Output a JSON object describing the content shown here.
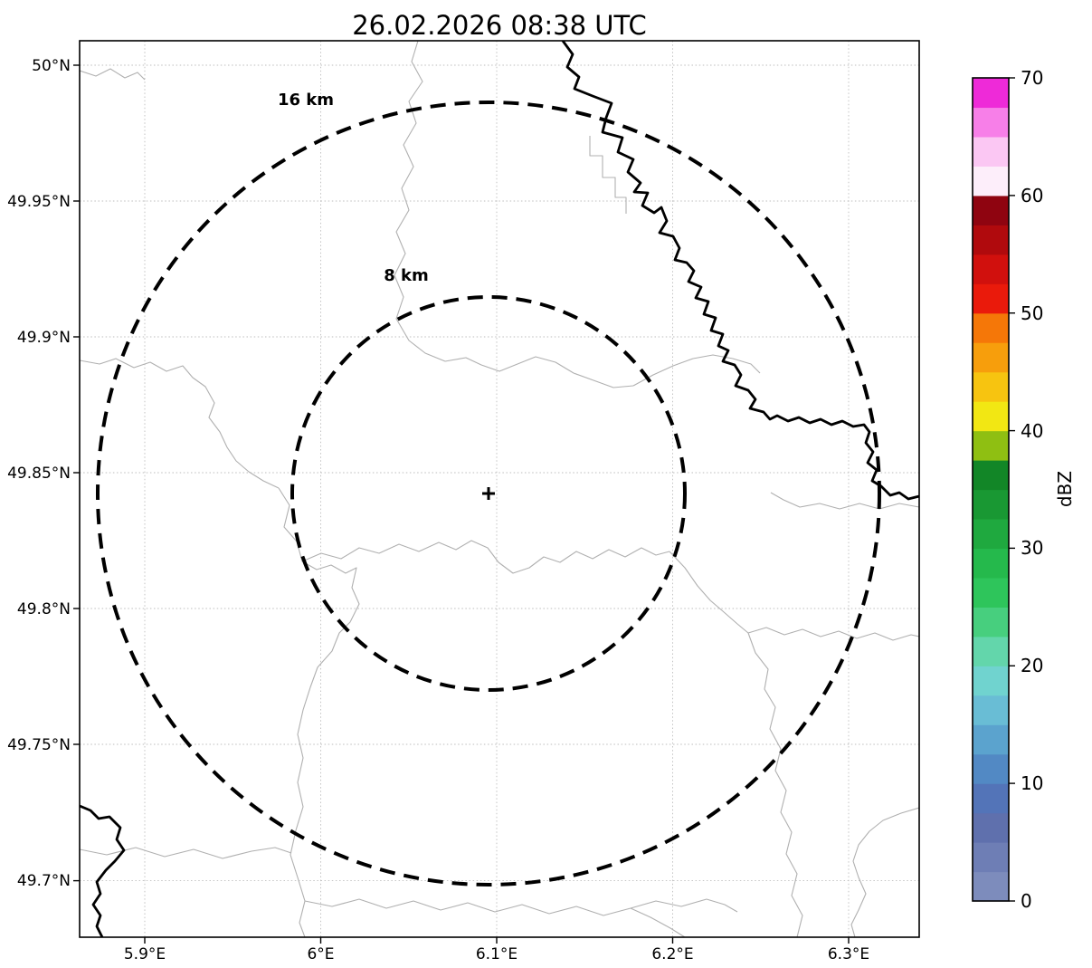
{
  "title": "26.02.2026 08:38 UTC",
  "map": {
    "x_axis": {
      "ticks": [
        "5.9°E",
        "6°E",
        "6.1°E",
        "6.2°E",
        "6.3°E"
      ]
    },
    "y_axis": {
      "ticks": [
        "50°N",
        "49.95°N",
        "49.9°N",
        "49.85°N",
        "49.8°N",
        "49.75°N",
        "49.7°N"
      ]
    },
    "range_rings": [
      {
        "label": "16 km",
        "radius_km": 16
      },
      {
        "label": "8 km",
        "radius_km": 8
      }
    ],
    "center_marker": "+"
  },
  "colorbar": {
    "label": "dBZ",
    "min": 0,
    "max": 70,
    "ticks": [
      "0",
      "10",
      "20",
      "30",
      "40",
      "50",
      "60",
      "70"
    ],
    "colors_bottom_to_top": [
      "#7d8cbc",
      "#6e7eb5",
      "#5f70ad",
      "#5374b8",
      "#5289c4",
      "#5ba3ce",
      "#69bdd5",
      "#70d3cf",
      "#63d6ab",
      "#47cf7e",
      "#2ec55b",
      "#25b94c",
      "#1fa93f",
      "#199833",
      "#128627",
      "#8fbf12",
      "#f2e713",
      "#f7c410",
      "#f79e0c",
      "#f57708",
      "#ea1a0b",
      "#d1100d",
      "#b00a0d",
      "#8f0410",
      "#fdeefa",
      "#fbc7f3",
      "#f77fe8",
      "#ee2ad8"
    ]
  },
  "style_colors": {
    "ring": "#000000",
    "river": "#000000",
    "admin_boundary": "#b0b0b0",
    "grid": "#bdbdbd",
    "frame": "#000000"
  }
}
